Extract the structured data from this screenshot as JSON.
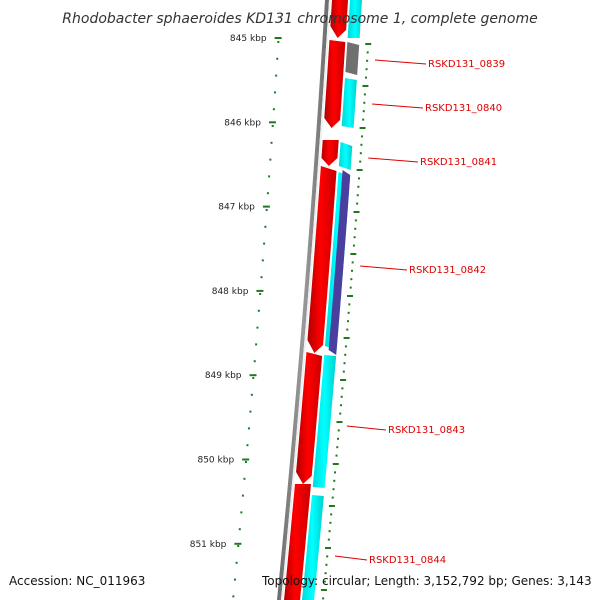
{
  "title": "Rhodobacter sphaeroides KD131 chromosome 1, complete genome",
  "accession": "Accession: NC_011963",
  "topology": "Topology: circular; Length: 3,152,792 bp; Genes: 3,143",
  "colors": {
    "forward_cds": "#ff0000",
    "reverse_cds": "#00ffff",
    "gray_feature": "#707070",
    "purple_feature": "#4a3f9f",
    "backbone": "#8a8a8a",
    "tick": "#1f7a1f",
    "label": "#dd0000",
    "leader": "#dd0000"
  },
  "ruler": {
    "unit": "kbp",
    "ticks": [
      {
        "value": 845,
        "label": "845 kbp"
      },
      {
        "value": 846,
        "label": "846 kbp"
      },
      {
        "value": 847,
        "label": "847 kbp"
      },
      {
        "value": 848,
        "label": "848 kbp"
      },
      {
        "value": 849,
        "label": "849 kbp"
      },
      {
        "value": 850,
        "label": "850 kbp"
      },
      {
        "value": 851,
        "label": "851 kbp"
      }
    ]
  },
  "genes": [
    {
      "name": "RSKD131_0839"
    },
    {
      "name": "RSKD131_0840"
    },
    {
      "name": "RSKD131_0841"
    },
    {
      "name": "RSKD131_0842"
    },
    {
      "name": "RSKD131_0843"
    },
    {
      "name": "RSKD131_0844"
    }
  ]
}
